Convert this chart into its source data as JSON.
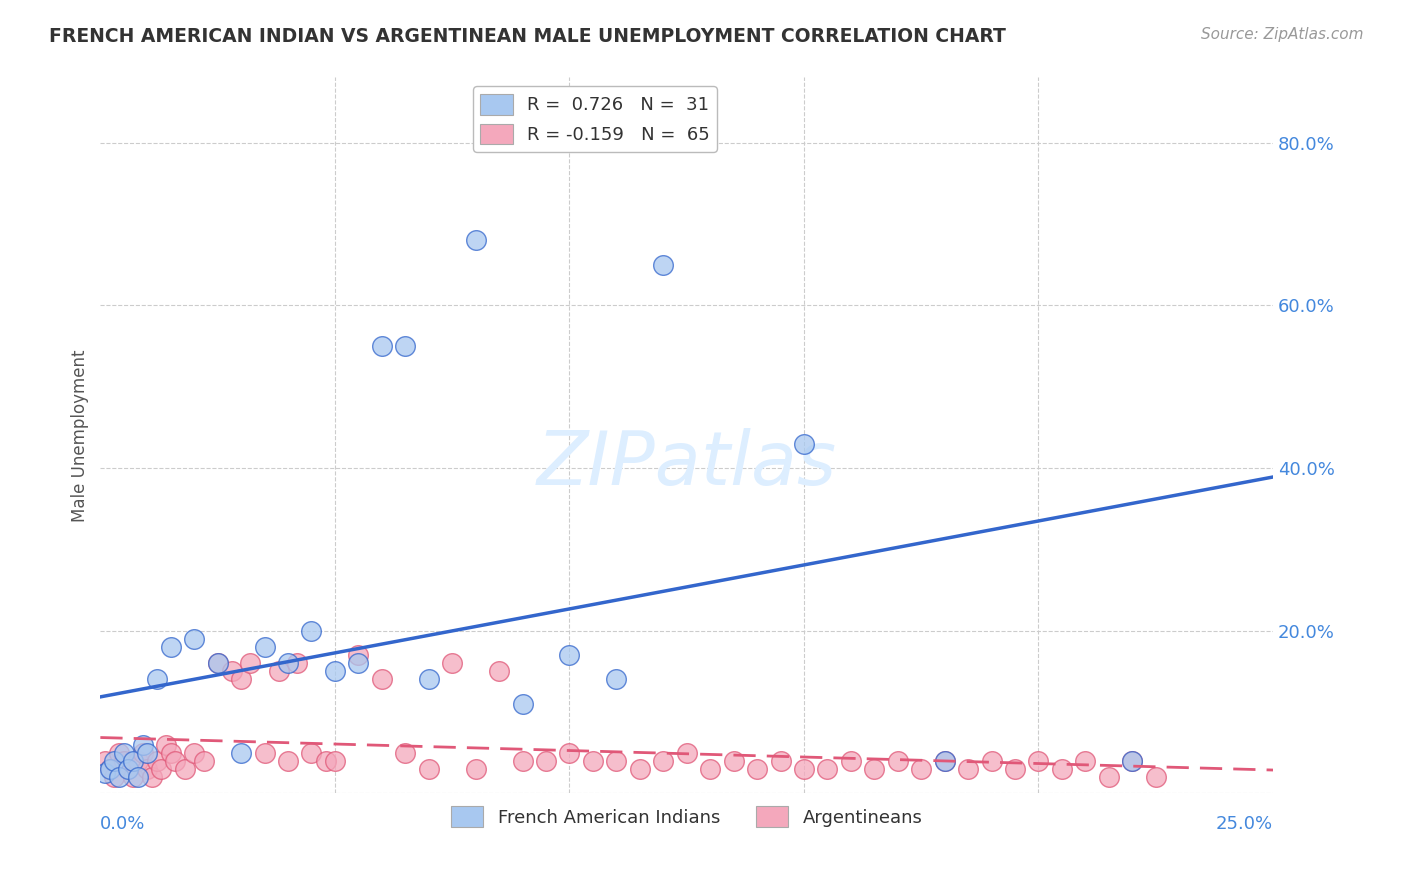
{
  "title": "FRENCH AMERICAN INDIAN VS ARGENTINEAN MALE UNEMPLOYMENT CORRELATION CHART",
  "source": "Source: ZipAtlas.com",
  "ylabel": "Male Unemployment",
  "yticks": [
    0.0,
    0.2,
    0.4,
    0.6,
    0.8
  ],
  "ytick_labels": [
    "",
    "20.0%",
    "40.0%",
    "60.0%",
    "80.0%"
  ],
  "xlim": [
    0.0,
    0.25
  ],
  "ylim": [
    0.0,
    0.88
  ],
  "blue_color": "#A8C8F0",
  "pink_color": "#F4A8BC",
  "blue_line_color": "#3366CC",
  "pink_line_color": "#E05878",
  "french_points_x": [
    0.001,
    0.002,
    0.003,
    0.004,
    0.005,
    0.006,
    0.007,
    0.008,
    0.009,
    0.01,
    0.012,
    0.015,
    0.02,
    0.025,
    0.03,
    0.035,
    0.04,
    0.045,
    0.05,
    0.055,
    0.06,
    0.065,
    0.07,
    0.08,
    0.09,
    0.1,
    0.11,
    0.12,
    0.15,
    0.18,
    0.22
  ],
  "french_points_y": [
    0.025,
    0.03,
    0.04,
    0.02,
    0.05,
    0.03,
    0.04,
    0.02,
    0.06,
    0.05,
    0.14,
    0.18,
    0.19,
    0.16,
    0.05,
    0.18,
    0.16,
    0.2,
    0.15,
    0.16,
    0.55,
    0.55,
    0.14,
    0.68,
    0.11,
    0.17,
    0.14,
    0.65,
    0.43,
    0.04,
    0.04
  ],
  "arg_points_x": [
    0.001,
    0.002,
    0.003,
    0.004,
    0.005,
    0.006,
    0.007,
    0.008,
    0.009,
    0.01,
    0.011,
    0.012,
    0.013,
    0.014,
    0.015,
    0.016,
    0.018,
    0.02,
    0.022,
    0.025,
    0.028,
    0.03,
    0.032,
    0.035,
    0.038,
    0.04,
    0.042,
    0.045,
    0.048,
    0.05,
    0.055,
    0.06,
    0.065,
    0.07,
    0.075,
    0.08,
    0.085,
    0.09,
    0.095,
    0.1,
    0.105,
    0.11,
    0.115,
    0.12,
    0.125,
    0.13,
    0.135,
    0.14,
    0.145,
    0.15,
    0.155,
    0.16,
    0.165,
    0.17,
    0.175,
    0.18,
    0.185,
    0.19,
    0.195,
    0.2,
    0.205,
    0.21,
    0.215,
    0.22,
    0.225
  ],
  "arg_points_y": [
    0.04,
    0.03,
    0.02,
    0.05,
    0.04,
    0.03,
    0.02,
    0.04,
    0.05,
    0.03,
    0.02,
    0.04,
    0.03,
    0.06,
    0.05,
    0.04,
    0.03,
    0.05,
    0.04,
    0.16,
    0.15,
    0.14,
    0.16,
    0.05,
    0.15,
    0.04,
    0.16,
    0.05,
    0.04,
    0.04,
    0.17,
    0.14,
    0.05,
    0.03,
    0.16,
    0.03,
    0.15,
    0.04,
    0.04,
    0.05,
    0.04,
    0.04,
    0.03,
    0.04,
    0.05,
    0.03,
    0.04,
    0.03,
    0.04,
    0.03,
    0.03,
    0.04,
    0.03,
    0.04,
    0.03,
    0.04,
    0.03,
    0.04,
    0.03,
    0.04,
    0.03,
    0.04,
    0.02,
    0.04,
    0.02
  ],
  "legend1_label": "R =  0.726   N =  31",
  "legend2_label": "R = -0.159   N =  65",
  "bottom_label1": "French American Indians",
  "bottom_label2": "Argentineans"
}
